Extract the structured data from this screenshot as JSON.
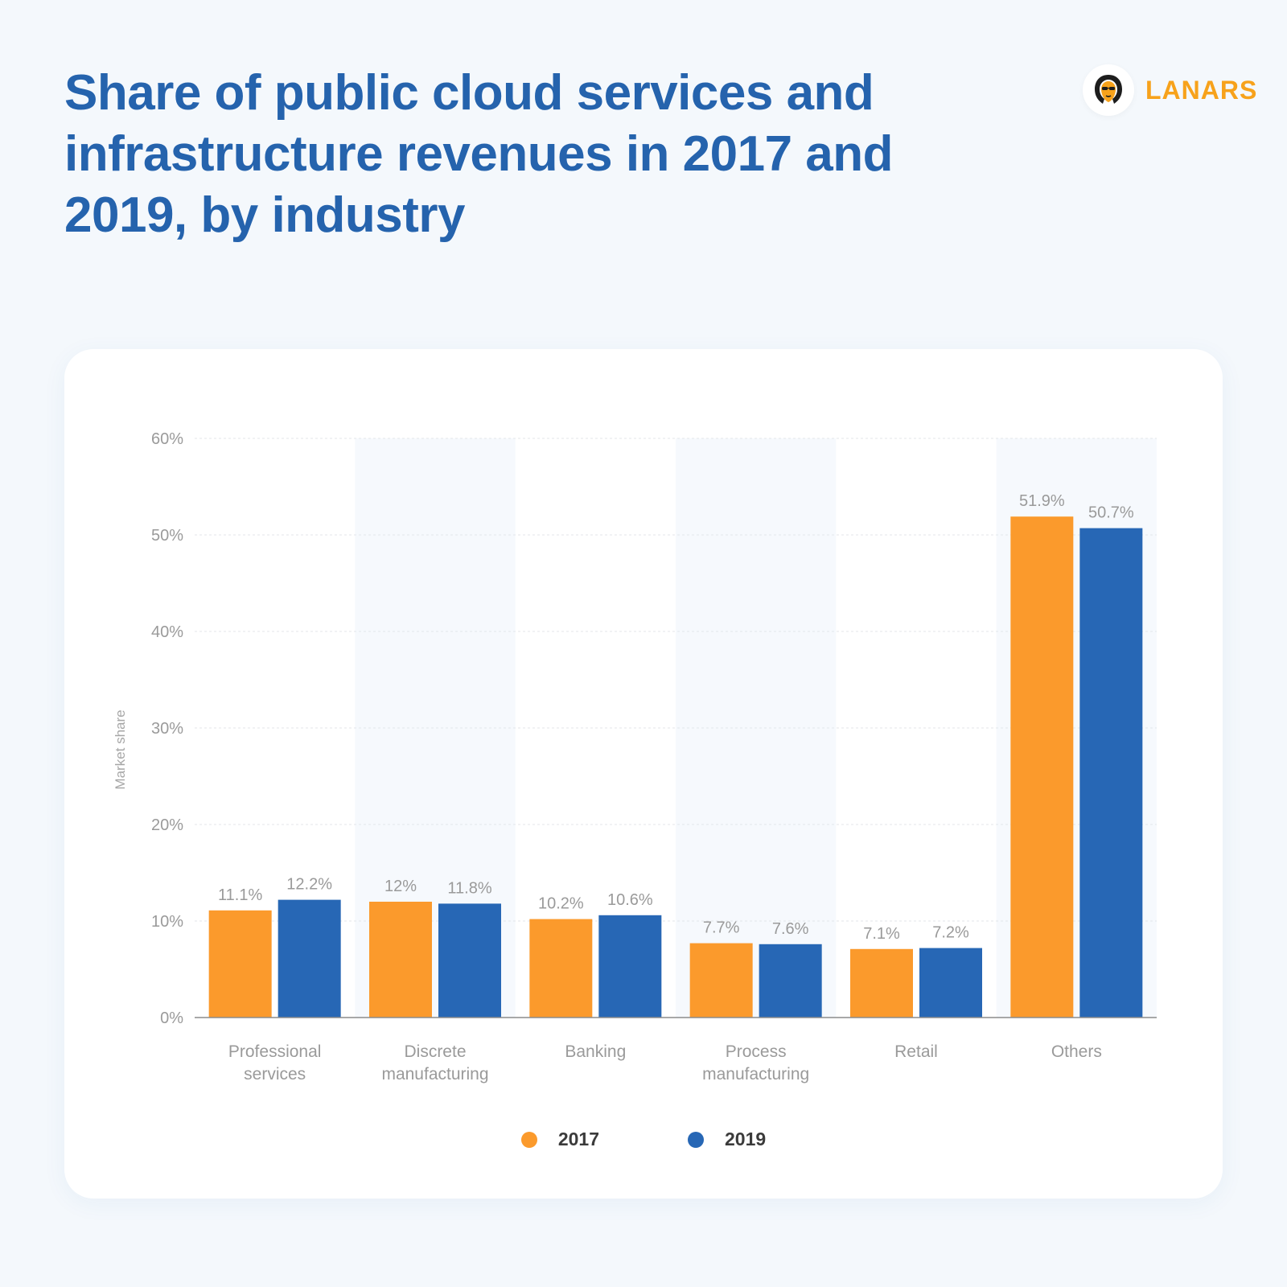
{
  "header": {
    "title": "Share of public cloud services and infrastructure revenues in 2017 and 2019, by industry"
  },
  "brand": {
    "name": "LANARS",
    "logo_icon": "lion-with-sunglasses-icon"
  },
  "colors": {
    "title": "#2563ad",
    "brand": "#f7a21b",
    "series_2017": "#fb9a2c",
    "series_2019": "#2767b5",
    "band": "#f6f9fd",
    "axis_text": "#9a9a9a"
  },
  "chart_data": {
    "type": "bar",
    "title": "",
    "xlabel": "",
    "ylabel": "Market share",
    "ylim": [
      0,
      60
    ],
    "yticks": [
      "0%",
      "10%",
      "20%",
      "30%",
      "40%",
      "50%",
      "60%"
    ],
    "grid": true,
    "legend_position": "bottom-center",
    "categories": [
      [
        "Professional",
        "services"
      ],
      [
        "Discrete",
        "manufacturing"
      ],
      [
        "Banking"
      ],
      [
        "Process",
        "manufacturing"
      ],
      [
        "Retail"
      ],
      [
        "Others"
      ]
    ],
    "series": [
      {
        "name": "2017",
        "color": "#fb9a2c",
        "values": [
          11.1,
          12,
          10.2,
          7.7,
          7.1,
          51.9
        ],
        "labels": [
          "11.1%",
          "12%",
          "10.2%",
          "7.7%",
          "7.1%",
          "51.9%"
        ]
      },
      {
        "name": "2019",
        "color": "#2767b5",
        "values": [
          12.2,
          11.8,
          10.6,
          7.6,
          7.2,
          50.7
        ],
        "labels": [
          "12.2%",
          "11.8%",
          "10.6%",
          "7.6%",
          "7.2%",
          "50.7%"
        ]
      }
    ]
  }
}
